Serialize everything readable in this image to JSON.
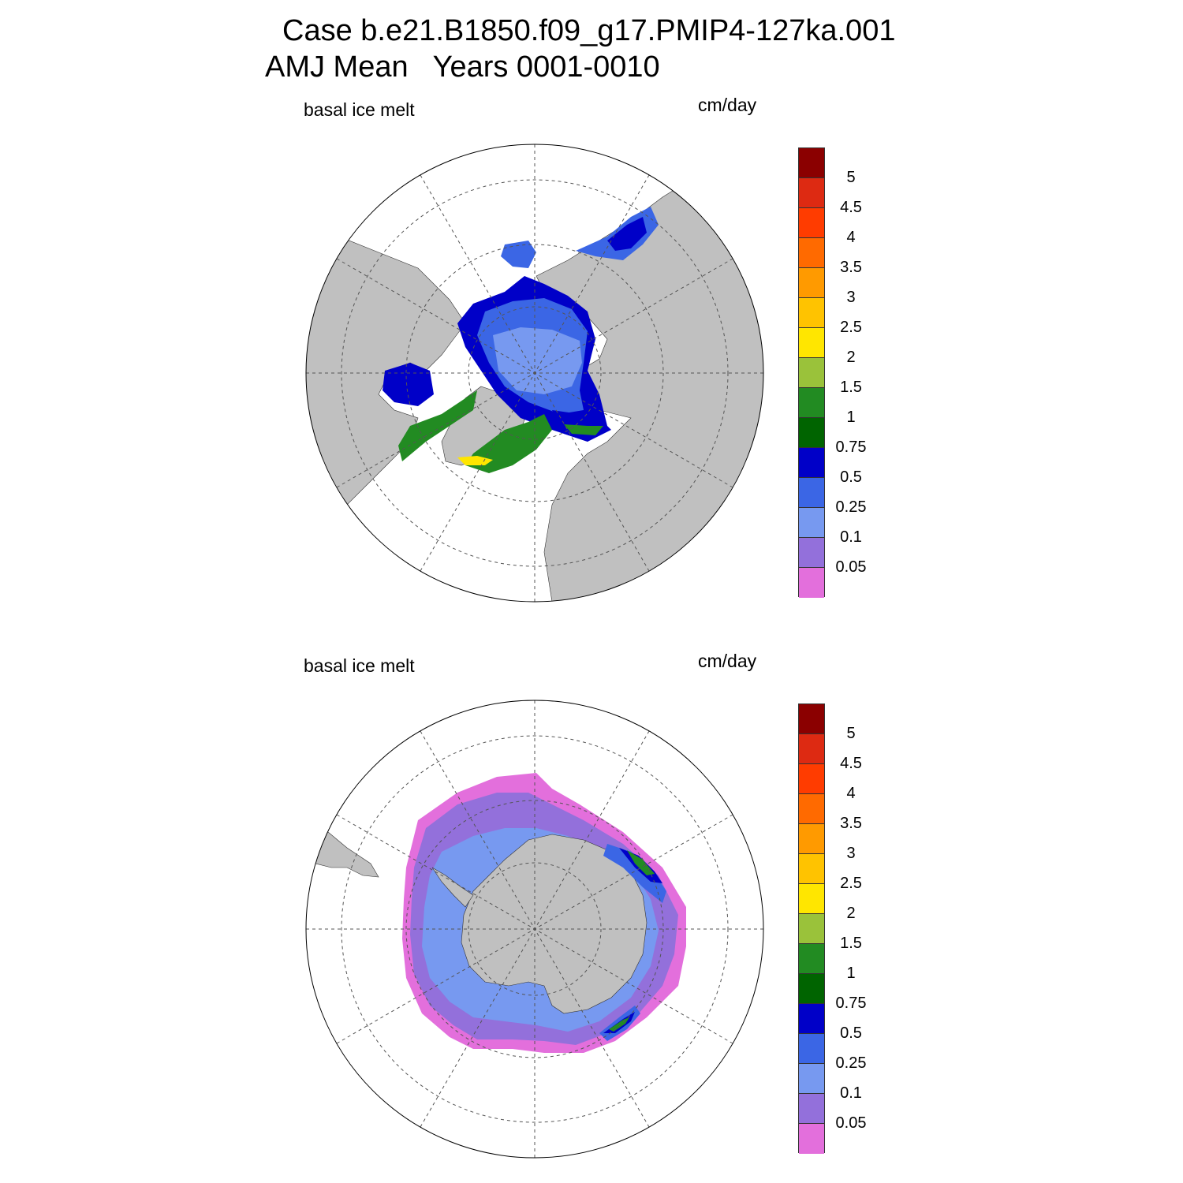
{
  "figure": {
    "title": "Case b.e21.B1850.f09_g17.PMIP4-127ka.001",
    "subtitle": "AMJ Mean   Years 0001-0010"
  },
  "panels": [
    {
      "hemisphere": "north",
      "left_label": "basal ice melt",
      "right_label": "cm/day",
      "colorbar_labels": [
        "5",
        "4.5",
        "4",
        "3.5",
        "3",
        "2.5",
        "2",
        "1.5",
        "1",
        "0.75",
        "0.5",
        "0.25",
        "0.1",
        "0.05"
      ]
    },
    {
      "hemisphere": "south",
      "left_label": "basal ice melt",
      "right_label": "cm/day",
      "colorbar_labels": [
        "5",
        "4.5",
        "4",
        "3.5",
        "3",
        "2.5",
        "2",
        "1.5",
        "1",
        "0.75",
        "0.5",
        "0.25",
        "0.1",
        "0.05"
      ]
    }
  ],
  "colorbar": {
    "levels": [
      0.05,
      0.1,
      0.25,
      0.5,
      0.75,
      1,
      1.5,
      2,
      2.5,
      3,
      3.5,
      4,
      4.5,
      5
    ],
    "colors_top_to_bottom": [
      "#8b0000",
      "#dd2a12",
      "#ff3c00",
      "#ff6a00",
      "#ff9a00",
      "#ffc300",
      "#ffe600",
      "#9ac23a",
      "#228b22",
      "#006400",
      "#0000c8",
      "#3b66e5",
      "#7799f0",
      "#9370db",
      "#e36fdc"
    ]
  },
  "style": {
    "land_color": "#c0c0c0",
    "ocean_color": "#ffffff"
  }
}
